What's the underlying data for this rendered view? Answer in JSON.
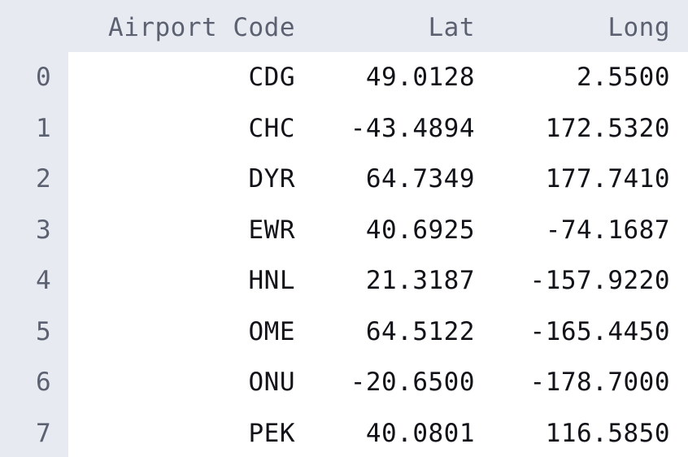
{
  "table": {
    "columns": [
      "Airport Code",
      "Lat",
      "Long"
    ],
    "rows": [
      {
        "index": "0",
        "code": "CDG",
        "lat": "49.0128",
        "long": "2.5500"
      },
      {
        "index": "1",
        "code": "CHC",
        "lat": "-43.4894",
        "long": "172.5320"
      },
      {
        "index": "2",
        "code": "DYR",
        "lat": "64.7349",
        "long": "177.7410"
      },
      {
        "index": "3",
        "code": "EWR",
        "lat": "40.6925",
        "long": "-74.1687"
      },
      {
        "index": "4",
        "code": "HNL",
        "lat": "21.3187",
        "long": "-157.9220"
      },
      {
        "index": "5",
        "code": "OME",
        "lat": "64.5122",
        "long": "-165.4450"
      },
      {
        "index": "6",
        "code": "ONU",
        "lat": "-20.6500",
        "long": "-178.7000"
      },
      {
        "index": "7",
        "code": "PEK",
        "lat": "40.0801",
        "long": "116.5850"
      }
    ]
  }
}
